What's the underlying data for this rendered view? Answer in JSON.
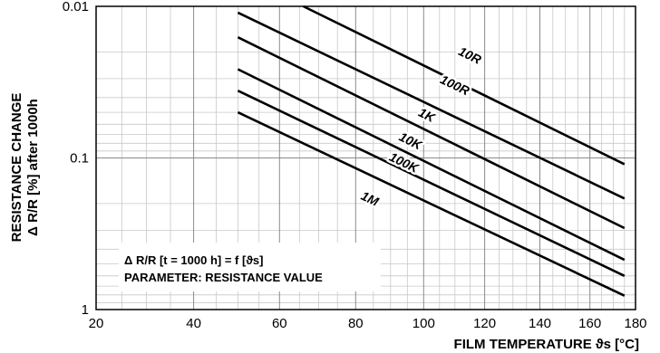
{
  "chart_data": {
    "type": "line",
    "xlabel": "FILM TEMPERATURE  ϑs [°C]",
    "ylabel_line1": "RESISTANCE CHANGE",
    "ylabel_line2": "Δ R/R [%] after 1000h",
    "x_scale": "reciprocal",
    "y_scale": "log",
    "y_inverted": true,
    "xlim": [
      20,
      180
    ],
    "ylim": [
      0.01,
      1
    ],
    "x_ticks": [
      20,
      40,
      60,
      80,
      100,
      120,
      140,
      160,
      180
    ],
    "x_tick_labels": [
      "20",
      "40",
      "60",
      "80",
      "100",
      "120",
      "140",
      "160",
      "180"
    ],
    "y_ticks": [
      0.01,
      0.1,
      1
    ],
    "y_tick_labels": [
      "0.01",
      "0.1",
      "1"
    ],
    "grid": true,
    "annotation": {
      "line1": "Δ R/R [t = 1000 h] = f [ϑs]",
      "line2": "PARAMETER: RESISTANCE VALUE"
    },
    "series": [
      {
        "name": "10R",
        "x": [
          66,
          175
        ],
        "y": [
          0.01,
          0.11
        ]
      },
      {
        "name": "100R",
        "x": [
          50,
          175
        ],
        "y": [
          0.011,
          0.185
        ]
      },
      {
        "name": "1K",
        "x": [
          50,
          175
        ],
        "y": [
          0.016,
          0.29
        ]
      },
      {
        "name": "10K",
        "x": [
          50,
          175
        ],
        "y": [
          0.026,
          0.47
        ]
      },
      {
        "name": "100K",
        "x": [
          50,
          175
        ],
        "y": [
          0.036,
          0.6
        ]
      },
      {
        "name": "1M",
        "x": [
          50,
          175
        ],
        "y": [
          0.05,
          0.81
        ]
      }
    ],
    "series_label_positions": [
      {
        "x": 115,
        "y": 0.021
      },
      {
        "x": 110,
        "y": 0.033
      },
      {
        "x": 101,
        "y": 0.052
      },
      {
        "x": 96,
        "y": 0.077
      },
      {
        "x": 94,
        "y": 0.107
      },
      {
        "x": 84,
        "y": 0.185
      }
    ]
  }
}
